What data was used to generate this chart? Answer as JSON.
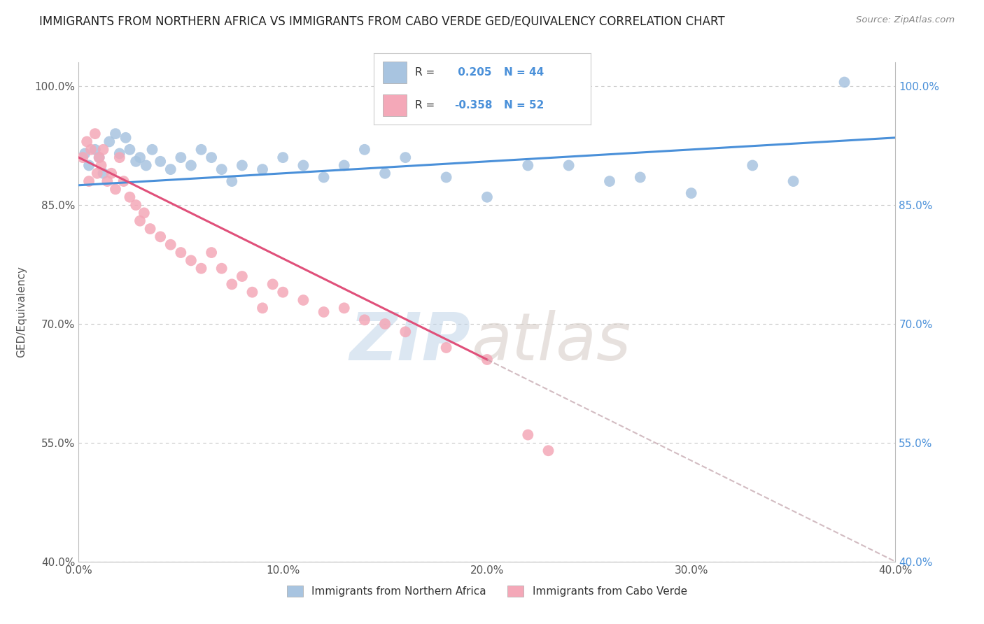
{
  "title": "IMMIGRANTS FROM NORTHERN AFRICA VS IMMIGRANTS FROM CABO VERDE GED/EQUIVALENCY CORRELATION CHART",
  "source": "Source: ZipAtlas.com",
  "ylabel": "GED/Equivalency",
  "legend_label_blue": "Immigrants from Northern Africa",
  "legend_label_pink": "Immigrants from Cabo Verde",
  "R_blue": 0.205,
  "N_blue": 44,
  "R_pink": -0.358,
  "N_pink": 52,
  "xlim": [
    0.0,
    40.0
  ],
  "ylim": [
    40.0,
    103.0
  ],
  "xticks": [
    0.0,
    10.0,
    20.0,
    30.0,
    40.0
  ],
  "yticks": [
    40.0,
    55.0,
    70.0,
    85.0,
    100.0
  ],
  "xticklabels": [
    "0.0%",
    "10.0%",
    "20.0%",
    "30.0%",
    "40.0%"
  ],
  "left_yticklabels": [
    "40.0%",
    "55.0%",
    "70.0%",
    "85.0%",
    "100.0%"
  ],
  "right_yticklabels": [
    "40.0%",
    "55.0%",
    "70.0%",
    "85.0%",
    "100.0%"
  ],
  "color_blue": "#a8c4e0",
  "color_pink": "#f4a8b8",
  "line_color_blue": "#4a90d9",
  "line_color_pink": "#e0507a",
  "background_color": "#ffffff",
  "grid_color": "#c8c8c8",
  "blue_line_x0": 0.0,
  "blue_line_y0": 87.5,
  "blue_line_x1": 40.0,
  "blue_line_y1": 93.5,
  "pink_line_x0": 0.0,
  "pink_line_y0": 91.0,
  "pink_line_x1": 40.0,
  "pink_line_y1": 40.0,
  "pink_solid_end_x": 20.0,
  "blue_scatter_x": [
    0.3,
    0.5,
    0.8,
    1.0,
    1.2,
    1.5,
    1.8,
    2.0,
    2.3,
    2.5,
    2.8,
    3.0,
    3.3,
    3.6,
    4.0,
    4.5,
    5.0,
    5.5,
    6.0,
    6.5,
    7.0,
    7.5,
    8.0,
    9.0,
    10.0,
    11.0,
    12.0,
    13.0,
    14.0,
    15.0,
    16.0,
    18.0,
    20.0,
    22.0,
    24.0,
    26.0,
    27.5,
    30.0,
    33.0,
    35.0,
    37.5
  ],
  "blue_scatter_y": [
    91.5,
    90.0,
    92.0,
    91.0,
    89.0,
    93.0,
    94.0,
    91.5,
    93.5,
    92.0,
    90.5,
    91.0,
    90.0,
    92.0,
    90.5,
    89.5,
    91.0,
    90.0,
    92.0,
    91.0,
    89.5,
    88.0,
    90.0,
    89.5,
    91.0,
    90.0,
    88.5,
    90.0,
    92.0,
    89.0,
    91.0,
    88.5,
    86.0,
    90.0,
    90.0,
    88.0,
    88.5,
    86.5,
    90.0,
    88.0,
    100.5
  ],
  "pink_scatter_x": [
    0.2,
    0.4,
    0.5,
    0.6,
    0.8,
    0.9,
    1.0,
    1.1,
    1.2,
    1.4,
    1.6,
    1.8,
    2.0,
    2.2,
    2.5,
    2.8,
    3.0,
    3.2,
    3.5,
    4.0,
    4.5,
    5.0,
    5.5,
    6.0,
    6.5,
    7.0,
    7.5,
    8.0,
    8.5,
    9.0,
    9.5,
    10.0,
    11.0,
    12.0,
    13.0,
    14.0,
    15.0,
    16.0,
    18.0,
    20.0,
    22.0,
    23.0
  ],
  "pink_scatter_y": [
    91.0,
    93.0,
    88.0,
    92.0,
    94.0,
    89.0,
    91.0,
    90.0,
    92.0,
    88.0,
    89.0,
    87.0,
    91.0,
    88.0,
    86.0,
    85.0,
    83.0,
    84.0,
    82.0,
    81.0,
    80.0,
    79.0,
    78.0,
    77.0,
    79.0,
    77.0,
    75.0,
    76.0,
    74.0,
    72.0,
    75.0,
    74.0,
    73.0,
    71.5,
    72.0,
    70.5,
    70.0,
    69.0,
    67.0,
    65.5,
    56.0,
    54.0
  ]
}
